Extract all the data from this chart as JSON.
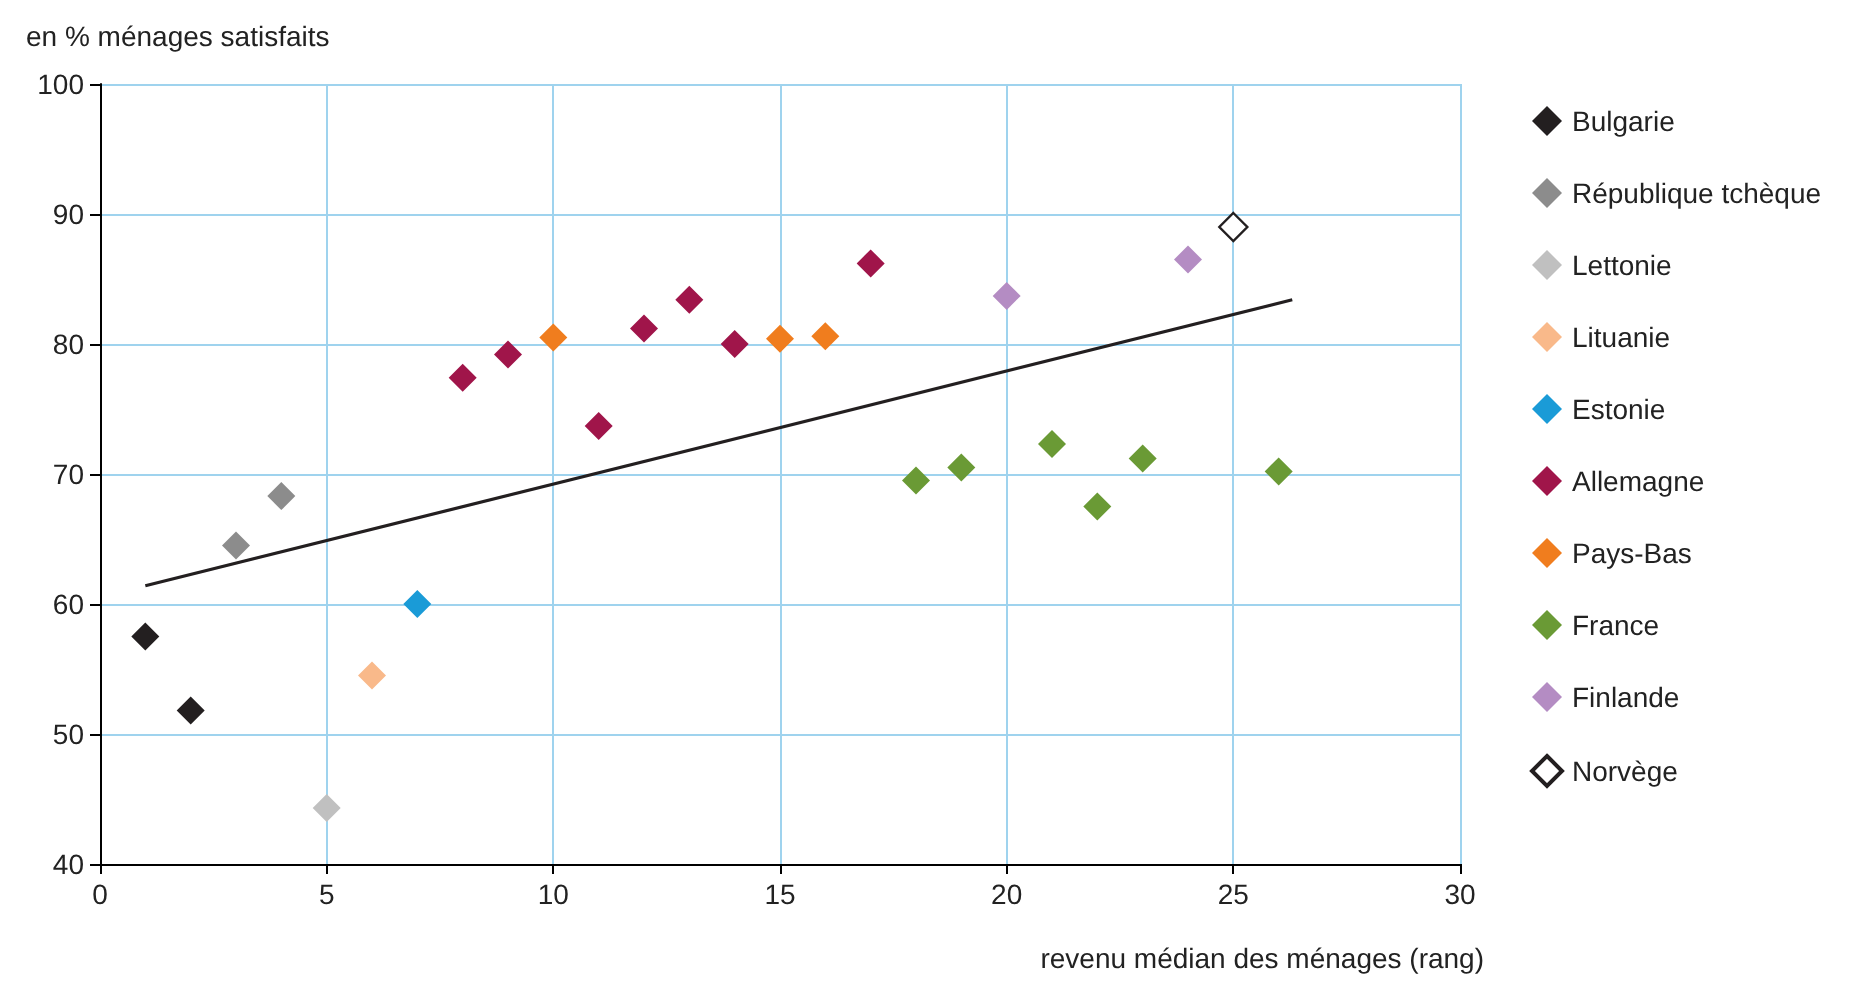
{
  "chart_data": {
    "type": "scatter",
    "ylabel": "en % ménages satisfaits",
    "xlabel": "revenu médian des ménages (rang)",
    "xlim": [
      0,
      30
    ],
    "xticks": [
      0,
      5,
      10,
      15,
      20,
      25,
      30
    ],
    "ylim": [
      40,
      100
    ],
    "yticks": [
      40,
      50,
      60,
      70,
      80,
      90,
      100
    ],
    "grid": true,
    "legend": "right",
    "marker": "diamond",
    "series": [
      {
        "name": "Bulgarie",
        "color": "#231f20",
        "x": [
          1,
          2
        ],
        "values": [
          57.5,
          51.8
        ]
      },
      {
        "name": "République tchèque",
        "color": "#8c8c8c",
        "x": [
          3,
          4
        ],
        "values": [
          64.5,
          68.3
        ]
      },
      {
        "name": "Lettonie",
        "color": "#c0c0c0",
        "x": [
          5
        ],
        "values": [
          44.3
        ]
      },
      {
        "name": "Lituanie",
        "color": "#f9b98a",
        "x": [
          6
        ],
        "values": [
          54.5
        ]
      },
      {
        "name": "Estonie",
        "color": "#1a9bd7",
        "x": [
          7
        ],
        "values": [
          60
        ]
      },
      {
        "name": "Allemagne",
        "color": "#a0154a",
        "x": [
          8,
          9,
          11,
          12,
          13,
          14,
          17
        ],
        "values": [
          77.4,
          79.2,
          73.7,
          81.2,
          83.4,
          80,
          86.2
        ]
      },
      {
        "name": "Pays-Bas",
        "color": "#f07d1e",
        "x": [
          10,
          15,
          16
        ],
        "values": [
          80.5,
          80.4,
          80.6
        ]
      },
      {
        "name": "France",
        "color": "#6a9a35",
        "x": [
          18,
          19,
          21,
          22,
          23,
          26
        ],
        "values": [
          69.5,
          70.5,
          72.3,
          67.5,
          71.2,
          70.2
        ]
      },
      {
        "name": "Finlande",
        "color": "#b48cc3",
        "x": [
          20,
          24
        ],
        "values": [
          83.7,
          86.5
        ]
      },
      {
        "name": "Norvège",
        "color": "#ffffff",
        "x": [
          25
        ],
        "values": [
          89
        ]
      },
      {
        "type": "line",
        "color": "#231f20",
        "marker": "none",
        "x": [
          1,
          26.3
        ],
        "values": [
          61.4,
          83.4
        ]
      }
    ]
  }
}
